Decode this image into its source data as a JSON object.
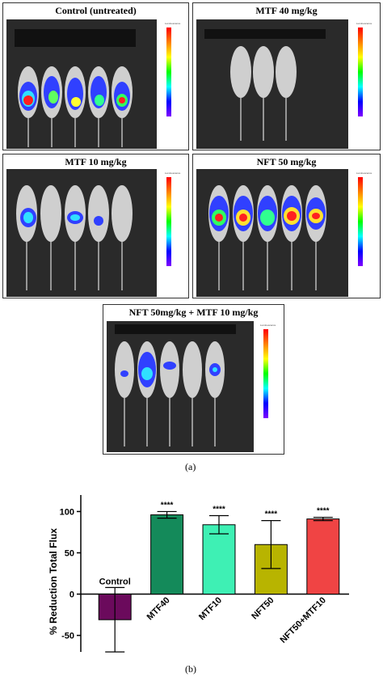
{
  "panels": [
    {
      "title": "Control (untreated)"
    },
    {
      "title": "MTF 40 mg/kg"
    },
    {
      "title": "MTF 10 mg/kg"
    },
    {
      "title": "NFT 50 mg/kg"
    },
    {
      "title": "NFT 50mg/kg + MTF 10 mg/kg"
    }
  ],
  "caption_a": "(a)",
  "caption_b": "(b)",
  "scale_label": "Luminescence",
  "chart_data": {
    "type": "bar",
    "categories": [
      "Control",
      "MTF40",
      "MTF10",
      "NFT50",
      "NFT50+MTF10"
    ],
    "values": [
      -31,
      96,
      84,
      60,
      91
    ],
    "errors": [
      39,
      4,
      11,
      29,
      2
    ],
    "significance": [
      "",
      "****",
      "****",
      "****",
      "****"
    ],
    "colors": [
      "#6b0a5c",
      "#148a5a",
      "#3ef0b4",
      "#b8b400",
      "#f04444"
    ],
    "ylabel": "% Reduction Total Flux",
    "yticks": [
      -50,
      0,
      50,
      100
    ],
    "ylim": [
      -70,
      120
    ]
  }
}
